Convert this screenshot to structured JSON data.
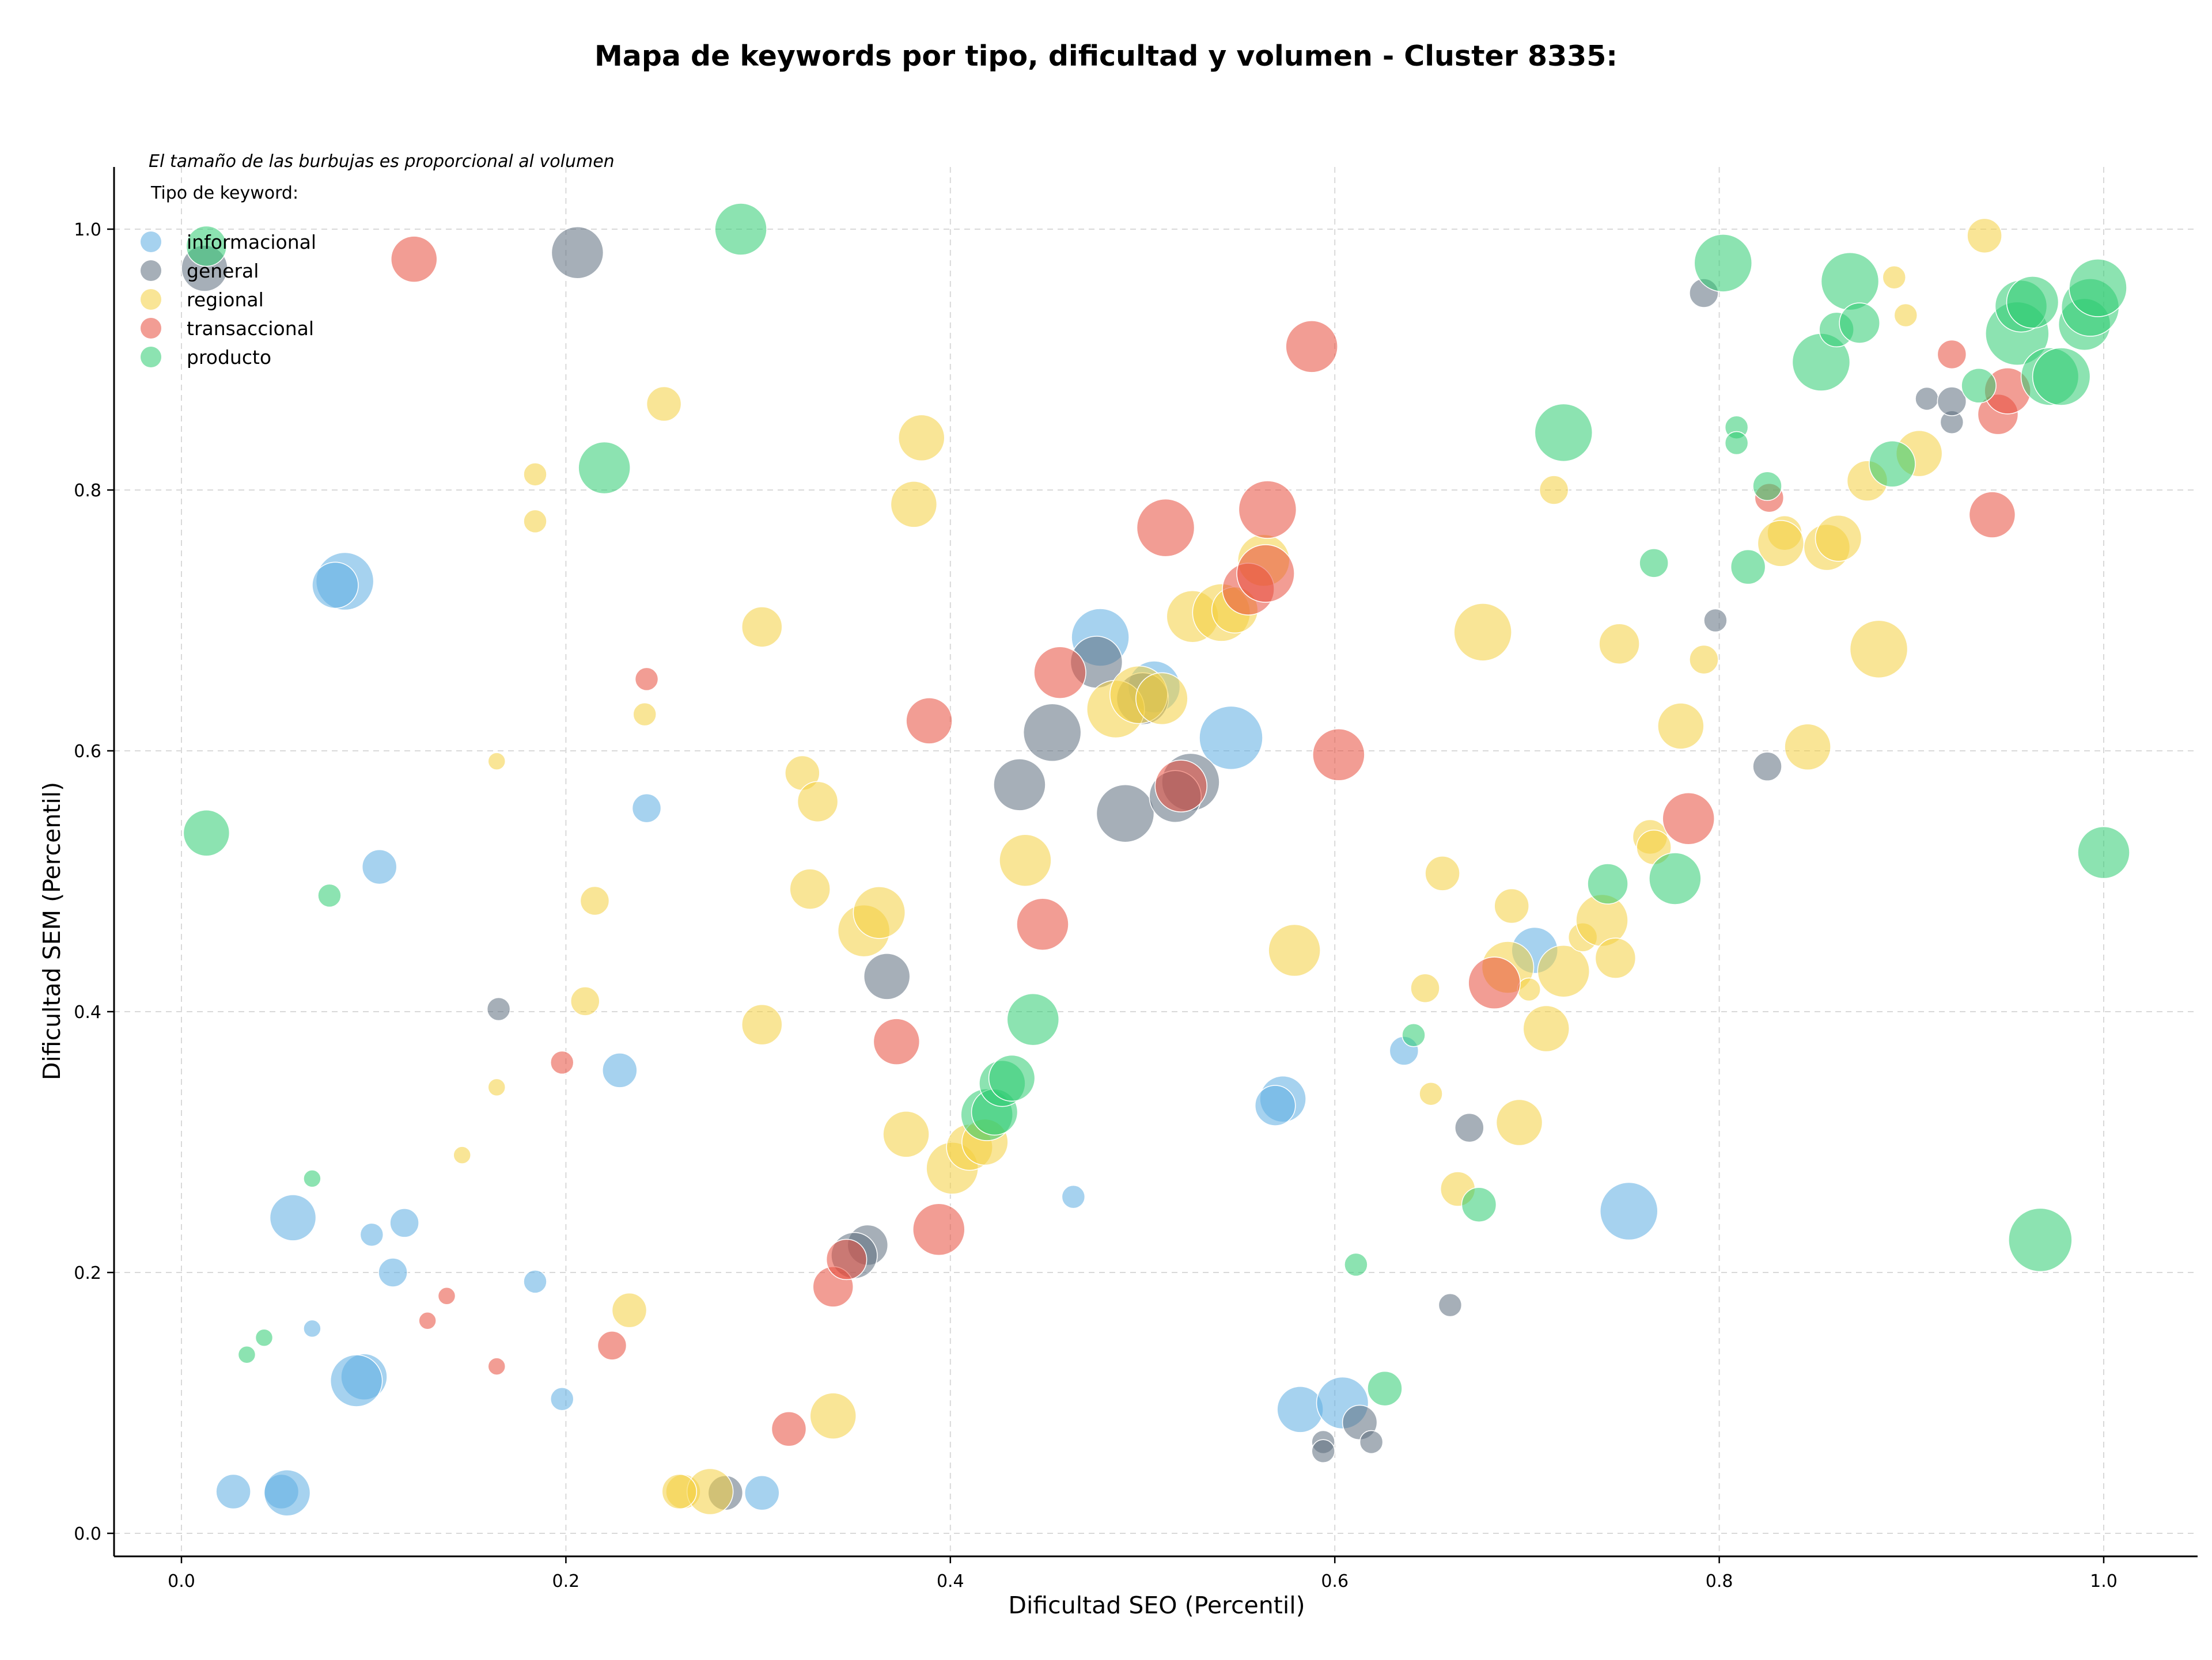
{
  "chart_data": {
    "type": "scatter",
    "title": "Mapa de keywords por tipo, dificultad y volumen - Cluster 8335:",
    "xlabel": "Dificultad SEO (Percentil)",
    "ylabel": "Dificultad SEM (Percentil)",
    "annotation": "El tamaño de las burbujas es proporcional al volumen",
    "legend_title": "Tipo de keyword:",
    "legend_position": "top-left",
    "grid": true,
    "xlim": [
      -0.035,
      1.05
    ],
    "ylim": [
      -0.015,
      1.05
    ],
    "xticks": [
      "0.0",
      "0.2",
      "0.4",
      "0.6",
      "0.8",
      "1.0"
    ],
    "yticks": [
      "0.0",
      "0.2",
      "0.4",
      "0.6",
      "0.8",
      "1.0"
    ],
    "series": [
      {
        "name": "informacional",
        "color": "#5DADE2",
        "points": [
          [
            0.085,
            0.73,
            50
          ],
          [
            0.08,
            0.727,
            40
          ],
          [
            0.103,
            0.511,
            30
          ],
          [
            0.058,
            0.242,
            40
          ],
          [
            0.116,
            0.238,
            25
          ],
          [
            0.099,
            0.229,
            20
          ],
          [
            0.11,
            0.2,
            25
          ],
          [
            0.184,
            0.193,
            20
          ],
          [
            0.068,
            0.157,
            15
          ],
          [
            0.095,
            0.12,
            40
          ],
          [
            0.091,
            0.117,
            45
          ],
          [
            0.198,
            0.103,
            20
          ],
          [
            0.027,
            0.032,
            30
          ],
          [
            0.052,
            0.032,
            30
          ],
          [
            0.055,
            0.031,
            40
          ],
          [
            0.228,
            0.355,
            30
          ],
          [
            0.242,
            0.556,
            25
          ],
          [
            0.302,
            0.031,
            30
          ],
          [
            0.464,
            0.258,
            20
          ],
          [
            0.478,
            0.687,
            50
          ],
          [
            0.506,
            0.649,
            45
          ],
          [
            0.546,
            0.61,
            55
          ],
          [
            0.573,
            0.333,
            40
          ],
          [
            0.569,
            0.328,
            35
          ],
          [
            0.582,
            0.095,
            40
          ],
          [
            0.604,
            0.1,
            45
          ],
          [
            0.636,
            0.37,
            25
          ],
          [
            0.704,
            0.447,
            40
          ],
          [
            0.753,
            0.247,
            50
          ]
        ]
      },
      {
        "name": "general",
        "color": "#5D6D7E",
        "points": [
          [
            0.012,
            0.97,
            40
          ],
          [
            0.206,
            0.982,
            45
          ],
          [
            0.165,
            0.402,
            20
          ],
          [
            0.283,
            0.031,
            30
          ],
          [
            0.357,
            0.221,
            35
          ],
          [
            0.35,
            0.213,
            40
          ],
          [
            0.367,
            0.427,
            40
          ],
          [
            0.436,
            0.574,
            45
          ],
          [
            0.453,
            0.614,
            50
          ],
          [
            0.476,
            0.668,
            45
          ],
          [
            0.491,
            0.552,
            50
          ],
          [
            0.5,
            0.64,
            45
          ],
          [
            0.525,
            0.576,
            50
          ],
          [
            0.517,
            0.565,
            45
          ],
          [
            0.594,
            0.07,
            20
          ],
          [
            0.594,
            0.063,
            20
          ],
          [
            0.613,
            0.085,
            30
          ],
          [
            0.619,
            0.07,
            20
          ],
          [
            0.66,
            0.175,
            20
          ],
          [
            0.67,
            0.311,
            25
          ],
          [
            0.792,
            0.951,
            25
          ],
          [
            0.798,
            0.7,
            20
          ],
          [
            0.825,
            0.588,
            25
          ],
          [
            0.908,
            0.87,
            20
          ],
          [
            0.921,
            0.852,
            20
          ],
          [
            0.921,
            0.868,
            25
          ]
        ]
      },
      {
        "name": "regional",
        "color": "#F4D03F",
        "points": [
          [
            0.251,
            0.866,
            30
          ],
          [
            0.184,
            0.812,
            20
          ],
          [
            0.184,
            0.776,
            20
          ],
          [
            0.302,
            0.695,
            35
          ],
          [
            0.241,
            0.628,
            20
          ],
          [
            0.164,
            0.592,
            15
          ],
          [
            0.215,
            0.485,
            25
          ],
          [
            0.21,
            0.408,
            25
          ],
          [
            0.164,
            0.342,
            15
          ],
          [
            0.146,
            0.29,
            15
          ],
          [
            0.233,
            0.171,
            30
          ],
          [
            0.339,
            0.09,
            40
          ],
          [
            0.261,
            0.032,
            30
          ],
          [
            0.275,
            0.032,
            40
          ],
          [
            0.259,
            0.032,
            30
          ],
          [
            0.302,
            0.39,
            35
          ],
          [
            0.323,
            0.583,
            30
          ],
          [
            0.331,
            0.561,
            35
          ],
          [
            0.327,
            0.494,
            35
          ],
          [
            0.355,
            0.462,
            45
          ],
          [
            0.363,
            0.476,
            45
          ],
          [
            0.385,
            0.84,
            40
          ],
          [
            0.381,
            0.789,
            40
          ],
          [
            0.377,
            0.306,
            40
          ],
          [
            0.401,
            0.28,
            45
          ],
          [
            0.41,
            0.296,
            40
          ],
          [
            0.418,
            0.3,
            40
          ],
          [
            0.439,
            0.516,
            45
          ],
          [
            0.486,
            0.632,
            50
          ],
          [
            0.498,
            0.643,
            50
          ],
          [
            0.51,
            0.64,
            45
          ],
          [
            0.526,
            0.703,
            45
          ],
          [
            0.541,
            0.706,
            50
          ],
          [
            0.548,
            0.708,
            40
          ],
          [
            0.563,
            0.746,
            45
          ],
          [
            0.579,
            0.447,
            45
          ],
          [
            0.647,
            0.418,
            25
          ],
          [
            0.65,
            0.337,
            20
          ],
          [
            0.656,
            0.506,
            30
          ],
          [
            0.664,
            0.264,
            30
          ],
          [
            0.677,
            0.691,
            50
          ],
          [
            0.69,
            0.434,
            45
          ],
          [
            0.692,
            0.481,
            30
          ],
          [
            0.701,
            0.417,
            20
          ],
          [
            0.696,
            0.315,
            40
          ],
          [
            0.71,
            0.387,
            40
          ],
          [
            0.714,
            0.8,
            25
          ],
          [
            0.719,
            0.431,
            45
          ],
          [
            0.729,
            0.457,
            25
          ],
          [
            0.739,
            0.47,
            45
          ],
          [
            0.746,
            0.441,
            35
          ],
          [
            0.748,
            0.682,
            35
          ],
          [
            0.764,
            0.534,
            30
          ],
          [
            0.766,
            0.526,
            30
          ],
          [
            0.78,
            0.619,
            40
          ],
          [
            0.792,
            0.67,
            25
          ],
          [
            0.834,
            0.767,
            30
          ],
          [
            0.832,
            0.759,
            40
          ],
          [
            0.846,
            0.603,
            40
          ],
          [
            0.856,
            0.756,
            40
          ],
          [
            0.862,
            0.763,
            40
          ],
          [
            0.877,
            0.807,
            35
          ],
          [
            0.883,
            0.678,
            50
          ],
          [
            0.891,
            0.963,
            20
          ],
          [
            0.897,
            0.934,
            20
          ],
          [
            0.904,
            0.828,
            40
          ],
          [
            0.938,
            0.995,
            30
          ]
        ]
      },
      {
        "name": "transaccional",
        "color": "#E74C3C",
        "points": [
          [
            0.121,
            0.977,
            40
          ],
          [
            0.242,
            0.655,
            20
          ],
          [
            0.198,
            0.361,
            20
          ],
          [
            0.138,
            0.182,
            15
          ],
          [
            0.128,
            0.163,
            15
          ],
          [
            0.164,
            0.128,
            15
          ],
          [
            0.224,
            0.144,
            25
          ],
          [
            0.316,
            0.08,
            30
          ],
          [
            0.339,
            0.189,
            35
          ],
          [
            0.346,
            0.21,
            35
          ],
          [
            0.372,
            0.377,
            40
          ],
          [
            0.389,
            0.623,
            40
          ],
          [
            0.394,
            0.233,
            45
          ],
          [
            0.448,
            0.467,
            45
          ],
          [
            0.457,
            0.66,
            45
          ],
          [
            0.512,
            0.771,
            50
          ],
          [
            0.52,
            0.573,
            45
          ],
          [
            0.555,
            0.724,
            45
          ],
          [
            0.564,
            0.736,
            50
          ],
          [
            0.565,
            0.785,
            50
          ],
          [
            0.588,
            0.91,
            45
          ],
          [
            0.602,
            0.597,
            45
          ],
          [
            0.683,
            0.422,
            45
          ],
          [
            0.784,
            0.548,
            45
          ],
          [
            0.826,
            0.794,
            25
          ],
          [
            0.921,
            0.904,
            25
          ],
          [
            0.942,
            0.781,
            40
          ],
          [
            0.945,
            0.858,
            35
          ],
          [
            0.95,
            0.876,
            40
          ]
        ]
      },
      {
        "name": "producto",
        "color": "#2ECC71",
        "points": [
          [
            0.013,
            0.987,
            35
          ],
          [
            0.013,
            0.537,
            40
          ],
          [
            0.068,
            0.272,
            15
          ],
          [
            0.043,
            0.15,
            15
          ],
          [
            0.034,
            0.137,
            15
          ],
          [
            0.077,
            0.489,
            20
          ],
          [
            0.22,
            0.817,
            45
          ],
          [
            0.291,
            1.0,
            45
          ],
          [
            0.419,
            0.321,
            45
          ],
          [
            0.423,
            0.323,
            40
          ],
          [
            0.427,
            0.345,
            40
          ],
          [
            0.432,
            0.349,
            40
          ],
          [
            0.443,
            0.394,
            45
          ],
          [
            0.611,
            0.206,
            20
          ],
          [
            0.626,
            0.111,
            30
          ],
          [
            0.641,
            0.382,
            20
          ],
          [
            0.675,
            0.252,
            30
          ],
          [
            0.719,
            0.844,
            50
          ],
          [
            0.742,
            0.498,
            35
          ],
          [
            0.766,
            0.744,
            25
          ],
          [
            0.777,
            0.502,
            45
          ],
          [
            0.802,
            0.974,
            50
          ],
          [
            0.809,
            0.848,
            20
          ],
          [
            0.809,
            0.836,
            20
          ],
          [
            0.815,
            0.741,
            30
          ],
          [
            0.825,
            0.803,
            25
          ],
          [
            0.853,
            0.898,
            50
          ],
          [
            0.868,
            0.96,
            50
          ],
          [
            0.861,
            0.923,
            30
          ],
          [
            0.873,
            0.928,
            35
          ],
          [
            0.89,
            0.82,
            40
          ],
          [
            0.935,
            0.88,
            30
          ],
          [
            0.955,
            0.92,
            55
          ],
          [
            0.957,
            0.941,
            45
          ],
          [
            0.963,
            0.944,
            45
          ],
          [
            0.967,
            0.225,
            55
          ],
          [
            0.972,
            0.887,
            50
          ],
          [
            0.978,
            0.887,
            50
          ],
          [
            0.99,
            0.927,
            45
          ],
          [
            0.993,
            0.94,
            50
          ],
          [
            0.997,
            0.955,
            50
          ],
          [
            1.0,
            0.522,
            45
          ]
        ]
      }
    ]
  }
}
